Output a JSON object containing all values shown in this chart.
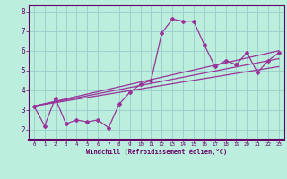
{
  "xlabel": "Windchill (Refroidissement éolien,°C)",
  "background_color": "#bbeedd",
  "grid_color": "#99cccc",
  "line_color": "#993399",
  "border_color": "#666699",
  "xlim": [
    -0.5,
    23.5
  ],
  "ylim": [
    1.5,
    8.3
  ],
  "xticks": [
    0,
    1,
    2,
    3,
    4,
    5,
    6,
    7,
    8,
    9,
    10,
    11,
    12,
    13,
    14,
    15,
    16,
    17,
    18,
    19,
    20,
    21,
    22,
    23
  ],
  "yticks": [
    2,
    3,
    4,
    5,
    6,
    7,
    8
  ],
  "line1_x": [
    0,
    1,
    2,
    3,
    4,
    5,
    6,
    7,
    8,
    9,
    10,
    11,
    12,
    13,
    14,
    15,
    16,
    17,
    18,
    19,
    20,
    21,
    22,
    23
  ],
  "line1_y": [
    3.2,
    2.2,
    3.6,
    2.3,
    2.5,
    2.4,
    2.5,
    2.1,
    3.3,
    3.9,
    4.3,
    4.5,
    6.9,
    7.6,
    7.5,
    7.5,
    6.3,
    5.2,
    5.5,
    5.3,
    5.9,
    4.9,
    5.5,
    5.9
  ],
  "line2_x": [
    0,
    23
  ],
  "line2_y": [
    3.2,
    6.0
  ],
  "line3_x": [
    0,
    23
  ],
  "line3_y": [
    3.2,
    5.2
  ],
  "line4_x": [
    0,
    23
  ],
  "line4_y": [
    3.2,
    5.6
  ],
  "xlabel_color": "#660066",
  "tick_color": "#660066",
  "spine_color": "#660066"
}
